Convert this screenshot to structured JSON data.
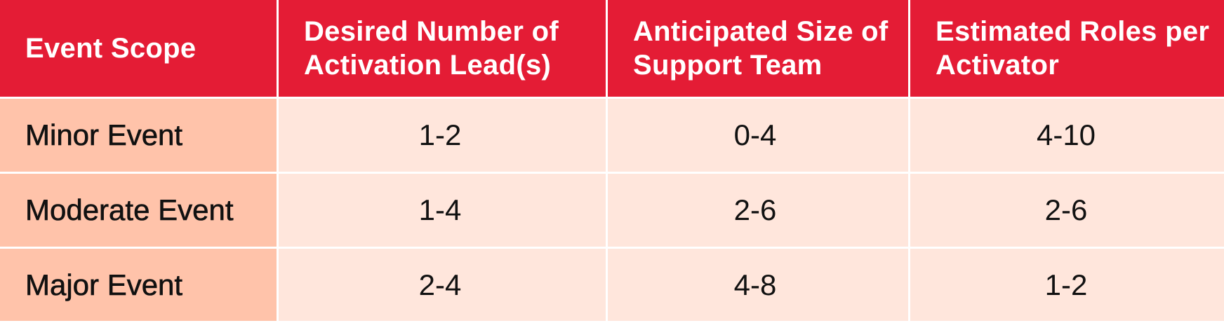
{
  "table": {
    "header": {
      "scope": "Event Scope",
      "leads": "Desired Number of Activation Lead(s)",
      "team": "Anticipated Size of Support Team",
      "roles": "Estimated Roles per Activator"
    },
    "rows": [
      {
        "scope": "Minor Event",
        "leads": "1-2",
        "team": "0-4",
        "roles": "4-10"
      },
      {
        "scope": "Moderate Event",
        "leads": "1-4",
        "team": "2-6",
        "roles": "2-6"
      },
      {
        "scope": "Major Event",
        "leads": "2-4",
        "team": "4-8",
        "roles": "1-2"
      }
    ],
    "colors": {
      "header_bg": "#e41c35",
      "header_text": "#ffffff",
      "row_label_bg": "#ffc3aa",
      "cell_bg": "#ffe6dc",
      "grid_line": "#ffffff"
    }
  }
}
